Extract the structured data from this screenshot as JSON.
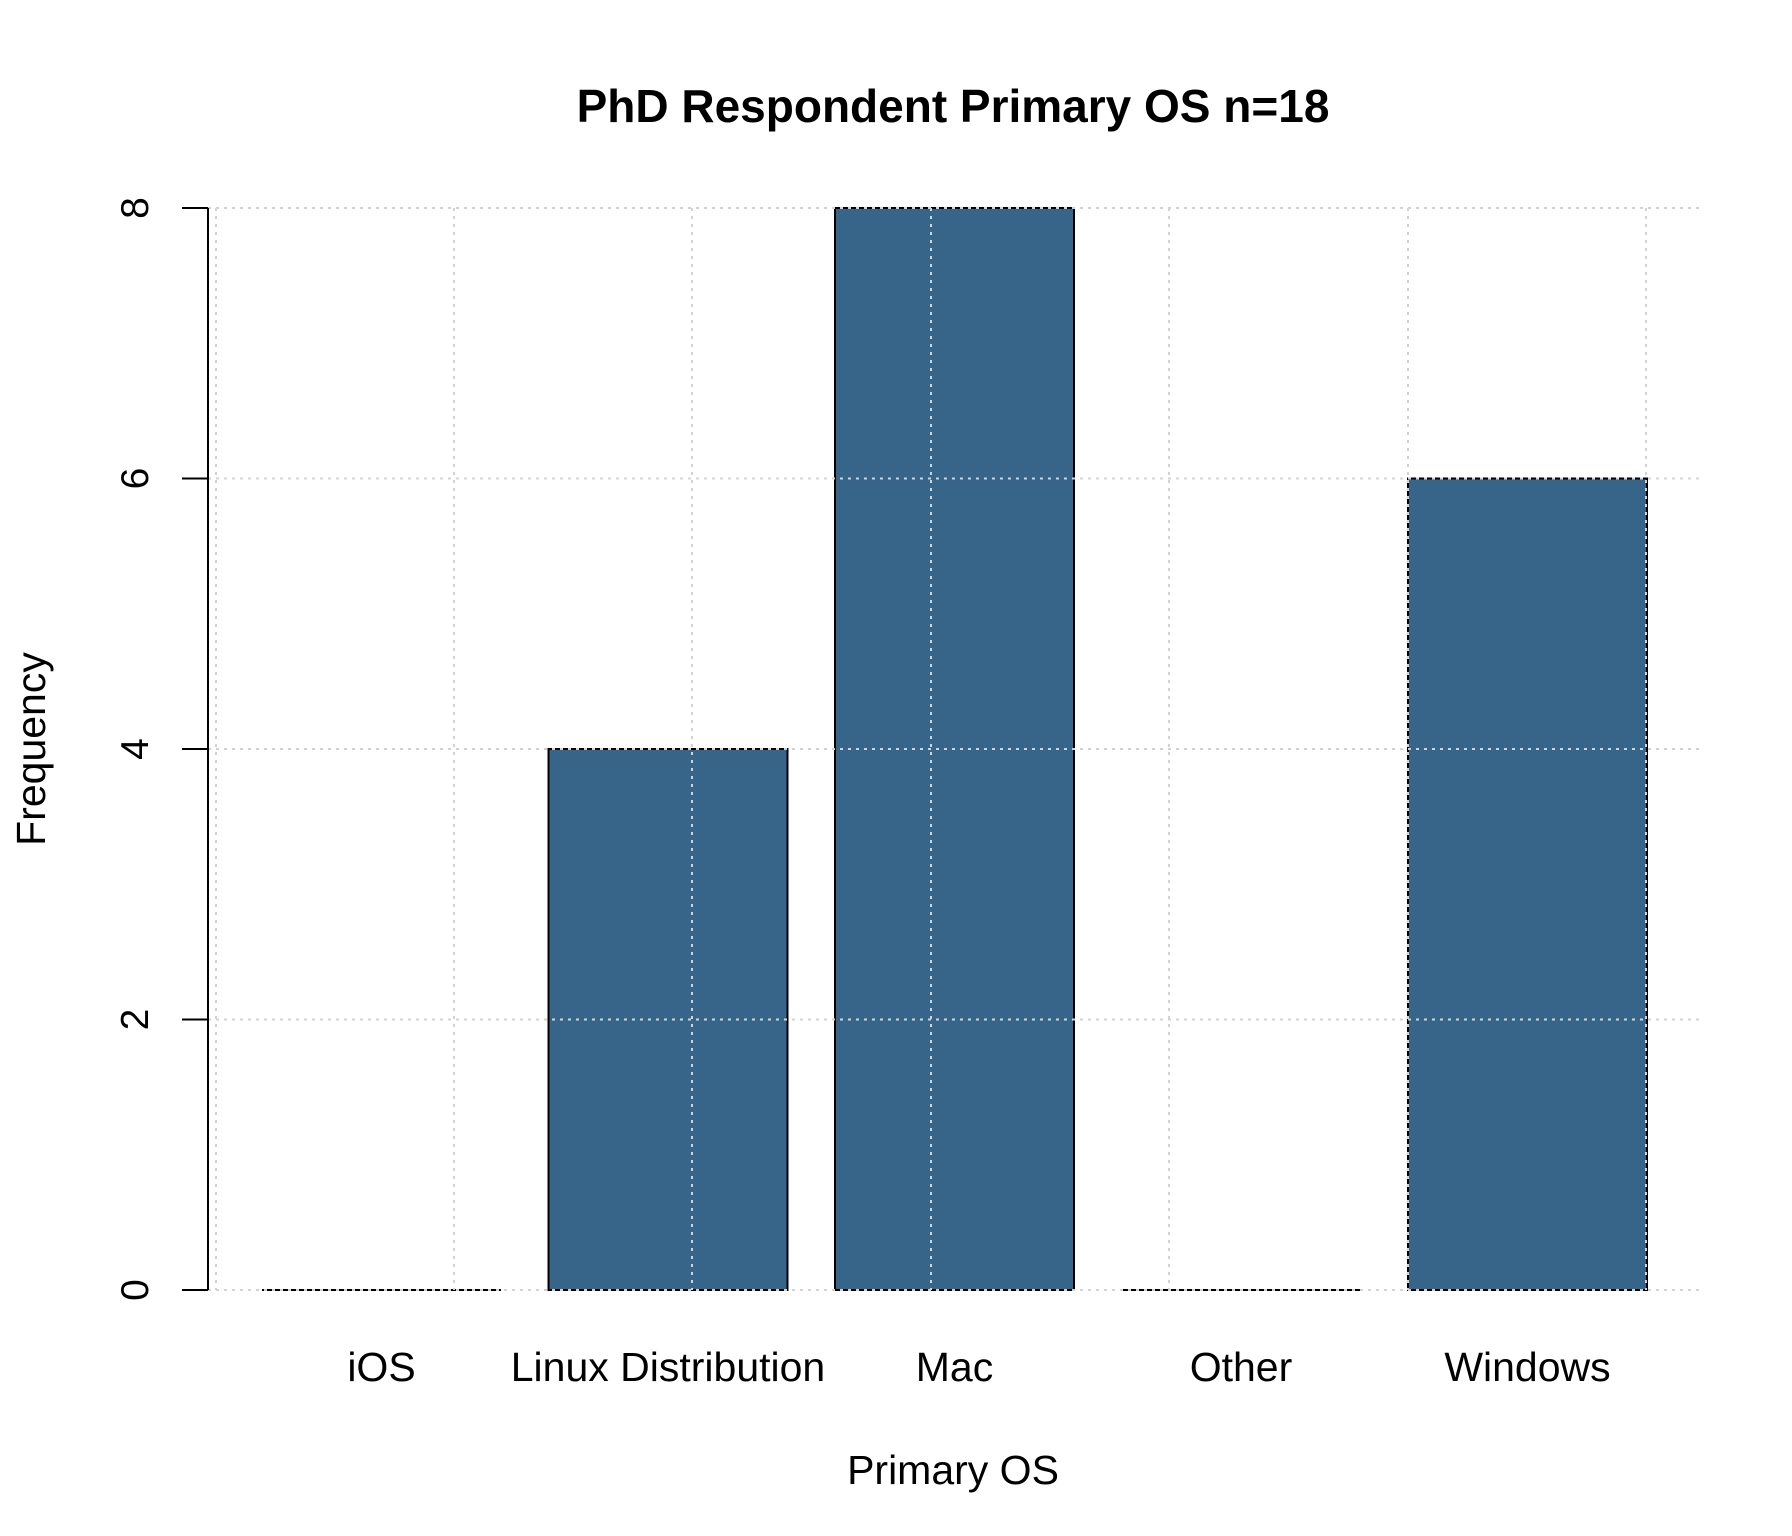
{
  "chart_data": {
    "type": "bar",
    "title": "PhD Respondent Primary OS n=18",
    "xlabel": "Primary OS",
    "ylabel": "Frequency",
    "categories": [
      "iOS",
      "Linux Distribution",
      "Mac",
      "Other",
      "Windows"
    ],
    "values": [
      0,
      4,
      8,
      0,
      6
    ],
    "ylim": [
      0,
      8
    ],
    "yticks": [
      0,
      2,
      4,
      6,
      8
    ],
    "bar_color": "#376489",
    "grid": true
  }
}
